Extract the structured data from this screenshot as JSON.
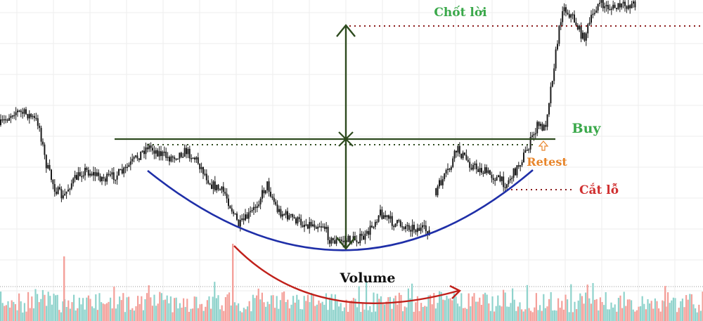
{
  "chart_data": {
    "type": "candlestick",
    "pattern": "cup",
    "title": "",
    "xlabel": "",
    "ylabel": "",
    "grid": true,
    "annotations": {
      "take_profit": "Chốt lời",
      "buy": "Buy",
      "retest": "Retest",
      "stop_loss": "Cắt lỗ",
      "volume": "Volume"
    },
    "colors": {
      "candle": "#1a1a1a",
      "cup_curve": "#1f2fa8",
      "levels": "#2d4a1e",
      "take_profit_text": "#3aa84a",
      "take_profit_line": "#8a1a1a",
      "buy_text": "#3aa84a",
      "retest_text": "#e8852a",
      "stop_loss_text": "#d03030",
      "stop_loss_line": "#8a1a1a",
      "volume_arrow": "#c0201a",
      "volume_up": "#8fd3cc",
      "volume_down": "#f4a09a"
    }
  }
}
